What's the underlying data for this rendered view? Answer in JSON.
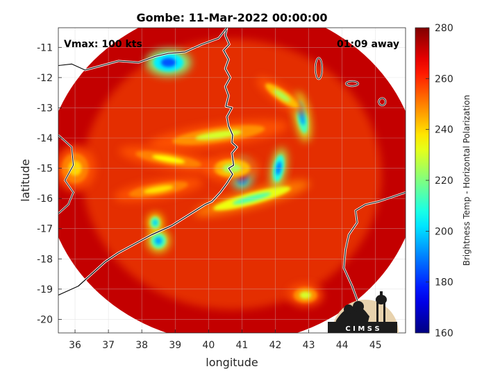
{
  "chart_data": {
    "type": "heatmap",
    "title": "Gombe: 11-Mar-2022 00:00:00",
    "xlabel": "longitude",
    "ylabel": "latitude",
    "xlim": [
      35.5,
      45.9
    ],
    "ylim": [
      -20.45,
      -10.35
    ],
    "x_ticks": [
      36,
      37,
      38,
      39,
      40,
      41,
      42,
      43,
      44,
      45
    ],
    "y_ticks": [
      -11,
      -12,
      -13,
      -14,
      -15,
      -16,
      -17,
      -18,
      -19,
      -20
    ],
    "grid": true,
    "annotations": {
      "vmax": "Vmax: 100 kts",
      "time_away": "01:09 away"
    },
    "storm_center": {
      "lon": 41.0,
      "lat": -15.2
    },
    "swath": {
      "center_lon": 40.7,
      "center_lat": -15.2,
      "radius_deg": 5.6
    },
    "colorbar": {
      "label": "Brightness Temp - Horizontal Polarization",
      "min": 160,
      "max": 280,
      "ticks": [
        280,
        260,
        240,
        220,
        200,
        180,
        160
      ],
      "colormap": "jet"
    },
    "features": [
      {
        "name": "eyewall",
        "lon": 41.0,
        "lat": -15.2,
        "value": 175,
        "rx": 0.22,
        "ry": 0.35,
        "rot": 0
      },
      {
        "name": "inner-band",
        "lon": 40.7,
        "lat": -15.0,
        "value": 225,
        "rx": 0.55,
        "ry": 0.3,
        "rot": 0
      },
      {
        "name": "south-band",
        "lon": 41.3,
        "lat": -16.0,
        "value": 215,
        "rx": 1.2,
        "ry": 0.2,
        "rot": -15
      },
      {
        "name": "east-band",
        "lon": 42.1,
        "lat": -15.0,
        "value": 190,
        "rx": 0.15,
        "ry": 0.45,
        "rot": 10
      },
      {
        "name": "north-east-band",
        "lon": 42.8,
        "lat": -13.3,
        "value": 195,
        "rx": 0.15,
        "ry": 0.55,
        "rot": -10
      },
      {
        "name": "north-east-arc",
        "lon": 42.2,
        "lat": -12.6,
        "value": 225,
        "rx": 0.6,
        "ry": 0.18,
        "rot": 35
      },
      {
        "name": "north-band",
        "lon": 40.3,
        "lat": -13.9,
        "value": 230,
        "rx": 1.4,
        "ry": 0.25,
        "rot": -8
      },
      {
        "name": "west-band",
        "lon": 38.8,
        "lat": -14.7,
        "value": 235,
        "rx": 1.0,
        "ry": 0.2,
        "rot": 10
      },
      {
        "name": "west-band-2",
        "lon": 38.5,
        "lat": -15.7,
        "value": 238,
        "rx": 0.9,
        "ry": 0.2,
        "rot": -10
      },
      {
        "name": "north-cell",
        "lon": 38.8,
        "lat": -11.5,
        "value": 185,
        "rx": 0.45,
        "ry": 0.3,
        "rot": 0
      },
      {
        "name": "southwest-cell",
        "lon": 38.5,
        "lat": -17.4,
        "value": 195,
        "rx": 0.22,
        "ry": 0.25,
        "rot": 0
      },
      {
        "name": "southwest-cell-2",
        "lon": 38.4,
        "lat": -16.8,
        "value": 200,
        "rx": 0.15,
        "ry": 0.2,
        "rot": 0
      },
      {
        "name": "south-cell",
        "lon": 42.9,
        "lat": -19.2,
        "value": 230,
        "rx": 0.35,
        "ry": 0.25,
        "rot": 0
      },
      {
        "name": "west-edge-cell",
        "lon": 36.0,
        "lat": -15.0,
        "value": 240,
        "rx": 0.4,
        "ry": 0.5,
        "rot": 0
      }
    ]
  },
  "logo": {
    "text": "C I M S S"
  }
}
